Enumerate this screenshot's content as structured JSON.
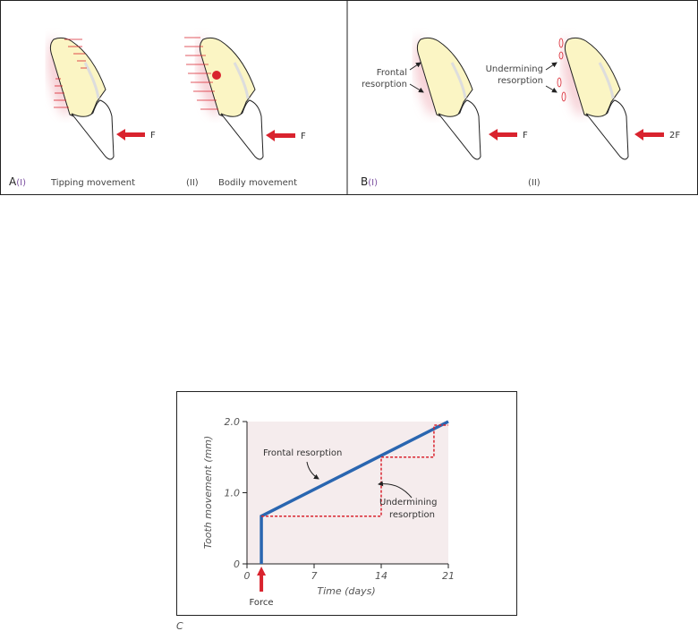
{
  "panels": {
    "A": {
      "letter": "A",
      "sub1": "(I)",
      "caption1": "Tipping movement",
      "sub2": "(II)",
      "caption2": "Bodily movement",
      "force1": "F",
      "force2": "F"
    },
    "B": {
      "letter": "B",
      "sub1": "(I)",
      "sub2": "(II)",
      "force1": "F",
      "force2": "2F",
      "frontal_line1": "Frontal",
      "frontal_line2": "resorption",
      "under_line1": "Undermining",
      "under_line2": "resorption"
    }
  },
  "colors": {
    "force_arrow": "#d9232e",
    "root": "#fbf5c4",
    "gum": "#f2b8c0",
    "frontal_line": "#2a66b0",
    "undermining_line": "#d9232e",
    "plot_bg": "#f5eced"
  },
  "chart_data": {
    "type": "line",
    "panel_label": "C",
    "xlabel": "Time (days)",
    "ylabel": "Tooth movement (mm)",
    "xlim": [
      0,
      21
    ],
    "ylim": [
      0,
      2.0
    ],
    "xticks": [
      "0",
      "7",
      "14",
      "21"
    ],
    "yticks": [
      "0",
      "1.0",
      "2.0"
    ],
    "force_label": "Force",
    "force_day": 1.5,
    "series": [
      {
        "name": "Frontal resorption",
        "style": "solid",
        "points": [
          [
            1.5,
            0
          ],
          [
            1.5,
            0.67
          ],
          [
            21,
            2.0
          ]
        ]
      },
      {
        "name": "Undermining resorption",
        "style": "dashed",
        "points": [
          [
            1.5,
            0.67
          ],
          [
            14,
            0.67
          ],
          [
            14,
            1.5
          ],
          [
            19.5,
            1.5
          ],
          [
            19.5,
            1.95
          ],
          [
            21,
            1.95
          ]
        ]
      }
    ],
    "annotation_frontal": "Frontal resorption",
    "annotation_under_1": "Undermining",
    "annotation_under_2": "resorption"
  }
}
